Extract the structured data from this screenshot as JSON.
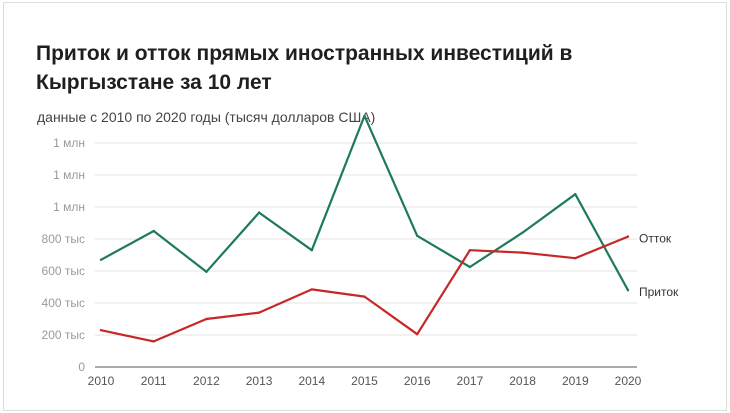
{
  "title": "Приток и отток прямых иностранных инвестиций в Кыргызстане за 10 лет",
  "subtitle": "данные с 2010 по 2020 годы (тысяч долларов США)",
  "chart_data": {
    "type": "line",
    "x": [
      "2010",
      "2011",
      "2012",
      "2013",
      "2014",
      "2015",
      "2016",
      "2017",
      "2018",
      "2019",
      "2020"
    ],
    "series": [
      {
        "name": "Приток",
        "color": "#1e7a5a",
        "values": [
          670,
          850,
          595,
          965,
          730,
          1570,
          820,
          625,
          840,
          1080,
          480
        ]
      },
      {
        "name": "Отток",
        "color": "#c62828",
        "values": [
          230,
          160,
          300,
          340,
          485,
          440,
          205,
          730,
          715,
          680,
          815
        ]
      }
    ],
    "yticks": [
      {
        "value": 0,
        "label": "0"
      },
      {
        "value": 200,
        "label": "200 тыс"
      },
      {
        "value": 400,
        "label": "400 тыс"
      },
      {
        "value": 600,
        "label": "600 тыс"
      },
      {
        "value": 800,
        "label": "800 тыс"
      },
      {
        "value": 1000,
        "label": "1 млн"
      },
      {
        "value": 1200,
        "label": "1 млн"
      },
      {
        "value": 1400,
        "label": "1 млн"
      }
    ],
    "ylim": [
      0,
      1400
    ],
    "grid": true,
    "legend": "inline-right"
  }
}
